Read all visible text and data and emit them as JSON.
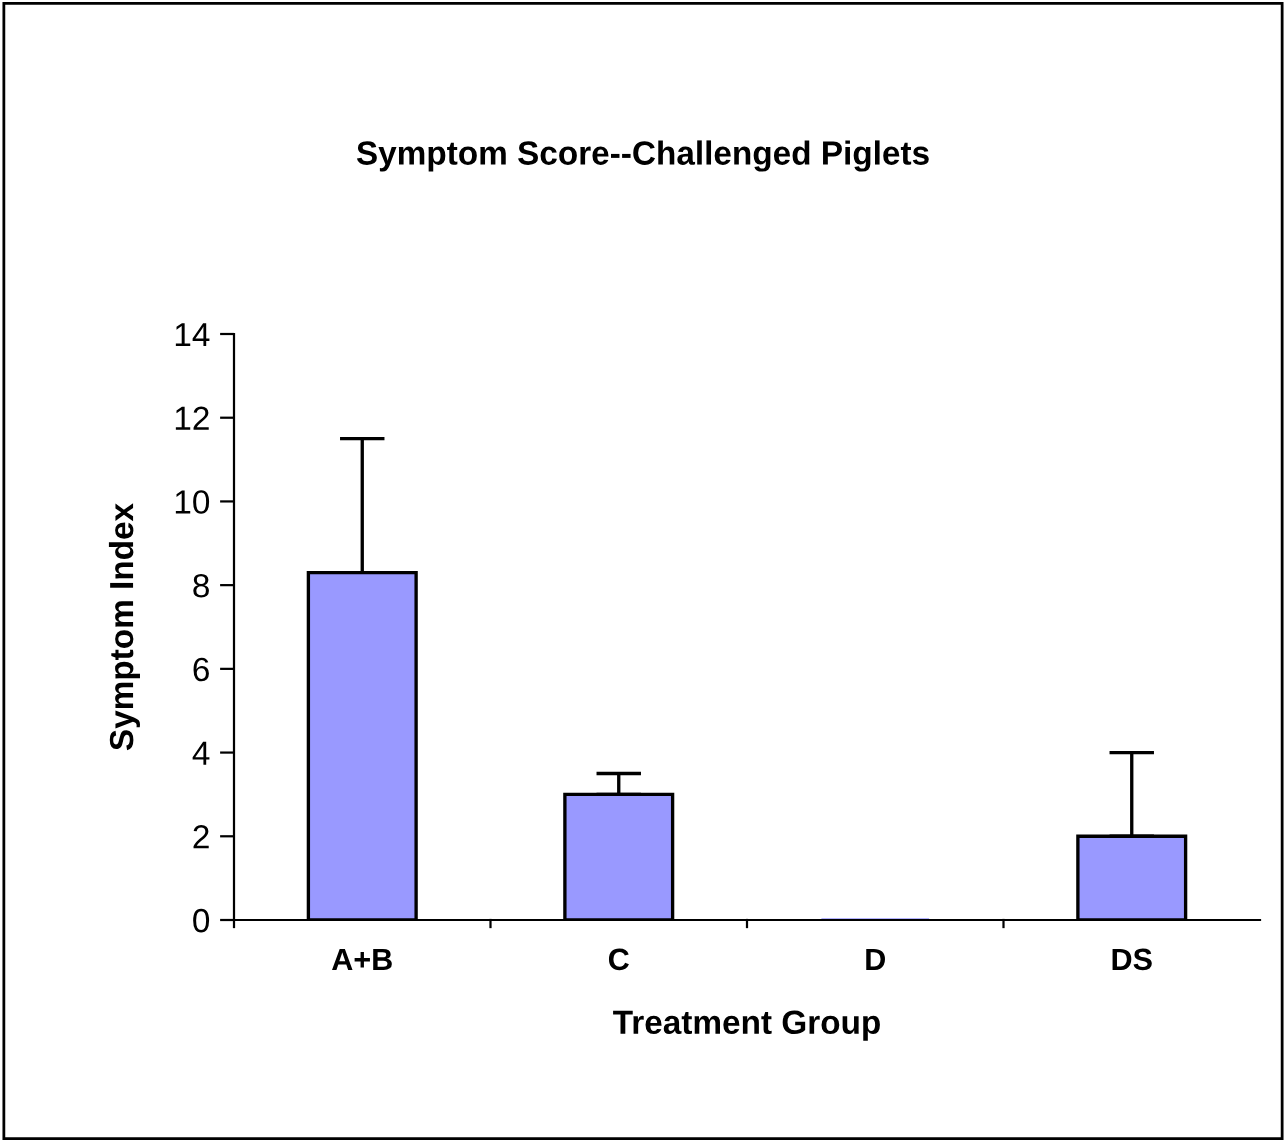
{
  "chart_data": {
    "type": "bar",
    "title": "Symptom Score--Challenged Piglets",
    "xlabel": "Treatment Group",
    "ylabel": "Symptom Index",
    "categories": [
      "A+B",
      "C",
      "D",
      "DS"
    ],
    "values": [
      8.3,
      3.0,
      0,
      2.0
    ],
    "errors": [
      [
        8.3,
        11.5
      ],
      [
        3.0,
        3.5
      ],
      null,
      [
        2.0,
        4.0
      ]
    ],
    "color": "#9999ff",
    "ylim": [
      0,
      14
    ],
    "yticks": [
      0,
      2,
      4,
      6,
      8,
      10,
      12,
      14
    ],
    "grid": false,
    "legend": false
  }
}
